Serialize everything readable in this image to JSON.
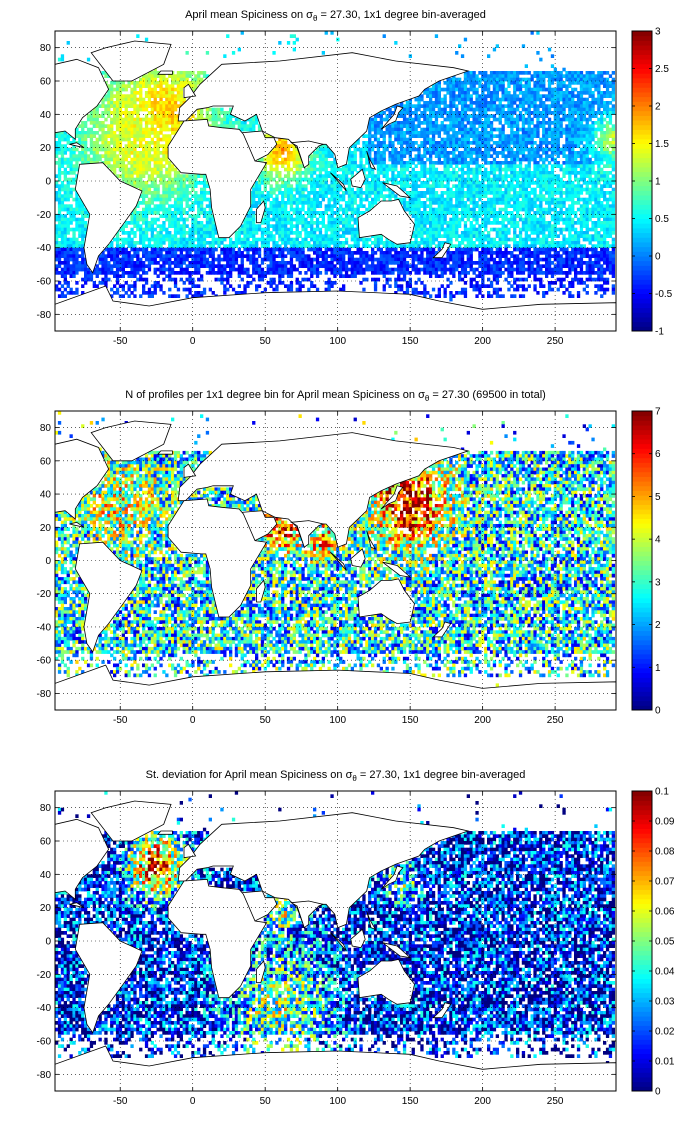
{
  "chart_data": [
    {
      "type": "heatmap",
      "title": "April mean Spiciness on σθ = 27.30, 1x1 degree bin-averaged",
      "title_parts": {
        "pre": "April mean Spiciness on σ",
        "sub": "θ",
        "post": " = 27.30, 1x1 degree bin-averaged"
      },
      "xlim": [
        -95,
        292
      ],
      "ylim": [
        -90,
        90
      ],
      "x_ticks": [
        -50,
        0,
        50,
        100,
        150,
        200,
        250
      ],
      "y_ticks": [
        -80,
        -60,
        -40,
        -20,
        0,
        20,
        40,
        60,
        80
      ],
      "grid": true,
      "colorbar": {
        "min": -1,
        "max": 3,
        "ticks": [
          -1,
          -0.5,
          0,
          0.5,
          1,
          1.5,
          2,
          2.5,
          3
        ],
        "tick_labels": [
          "-1",
          "-0.5",
          "0",
          "0.5",
          "1",
          "1.5",
          "2",
          "2.5",
          "3"
        ]
      },
      "colormap": "jet",
      "coverage_density": 0.82,
      "field_centers": [
        {
          "lon": -20,
          "lat": 38,
          "value": 2.0,
          "spread": 22
        },
        {
          "lon": -40,
          "lat": 25,
          "value": 1.4,
          "spread": 25
        },
        {
          "lon": 62,
          "lat": 18,
          "value": 1.9,
          "spread": 12
        },
        {
          "lon": 290,
          "lat": 25,
          "value": 1.2,
          "spread": 10
        }
      ],
      "field_base": 0.45,
      "field_note_values": {
        "north_pacific": 0.1,
        "southern_ocean": -0.35
      }
    },
    {
      "type": "heatmap",
      "title": "N of profiles per 1x1 degree bin for April mean Spiciness on σθ = 27.30 (69500 in total)",
      "title_parts": {
        "pre": "N of profiles per 1x1 degree bin for April mean Spiciness on σ",
        "sub": "θ",
        "post": " = 27.30 (69500 in total)"
      },
      "xlim": [
        -95,
        292
      ],
      "ylim": [
        -90,
        90
      ],
      "x_ticks": [
        -50,
        0,
        50,
        100,
        150,
        200,
        250
      ],
      "y_ticks": [
        -80,
        -60,
        -40,
        -20,
        0,
        20,
        40,
        60,
        80
      ],
      "grid": true,
      "colorbar": {
        "min": 0,
        "max": 7,
        "ticks": [
          0,
          1,
          2,
          3,
          4,
          5,
          6,
          7
        ],
        "tick_labels": [
          "0",
          "1",
          "2",
          "3",
          "4",
          "5",
          "6",
          "7"
        ]
      },
      "colormap": "jet",
      "total_profiles": 69500,
      "coverage_density": 0.82,
      "field_centers": [
        {
          "lon": 150,
          "lat": 35,
          "value": 6.5,
          "spread": 18
        },
        {
          "lon": 62,
          "lat": 18,
          "value": 5.5,
          "spread": 10
        },
        {
          "lon": 90,
          "lat": 12,
          "value": 5.0,
          "spread": 8
        },
        {
          "lon": -50,
          "lat": 35,
          "value": 4.0,
          "spread": 20
        }
      ],
      "field_base": 2.6
    },
    {
      "type": "heatmap",
      "title": "St. deviation for April mean Spiciness on σθ = 27.30, 1x1 degree bin-averaged",
      "title_parts": {
        "pre": "St. deviation for April mean Spiciness on σ",
        "sub": "θ",
        "post": " = 27.30, 1x1 degree bin-averaged"
      },
      "xlim": [
        -95,
        292
      ],
      "ylim": [
        -90,
        90
      ],
      "x_ticks": [
        -50,
        0,
        50,
        100,
        150,
        200,
        250
      ],
      "y_ticks": [
        -80,
        -60,
        -40,
        -20,
        0,
        20,
        40,
        60,
        80
      ],
      "grid": true,
      "colorbar": {
        "min": 0,
        "max": 0.1,
        "ticks": [
          0,
          0.01,
          0.02,
          0.03,
          0.04,
          0.05,
          0.06,
          0.07,
          0.08,
          0.09,
          0.1
        ],
        "tick_labels": [
          "0",
          "0.01",
          "0.02",
          "0.03",
          "0.04",
          "0.05",
          "0.06",
          "0.07",
          "0.08",
          "0.09",
          "0.1"
        ]
      },
      "colormap": "jet",
      "coverage_density": 0.82,
      "field_centers": [
        {
          "lon": -25,
          "lat": 45,
          "value": 0.085,
          "spread": 14
        },
        {
          "lon": 62,
          "lat": 18,
          "value": 0.05,
          "spread": 10
        },
        {
          "lon": 145,
          "lat": 35,
          "value": 0.04,
          "spread": 10
        },
        {
          "lon": 60,
          "lat": -40,
          "value": 0.05,
          "spread": 25
        }
      ],
      "field_base": 0.012
    }
  ]
}
